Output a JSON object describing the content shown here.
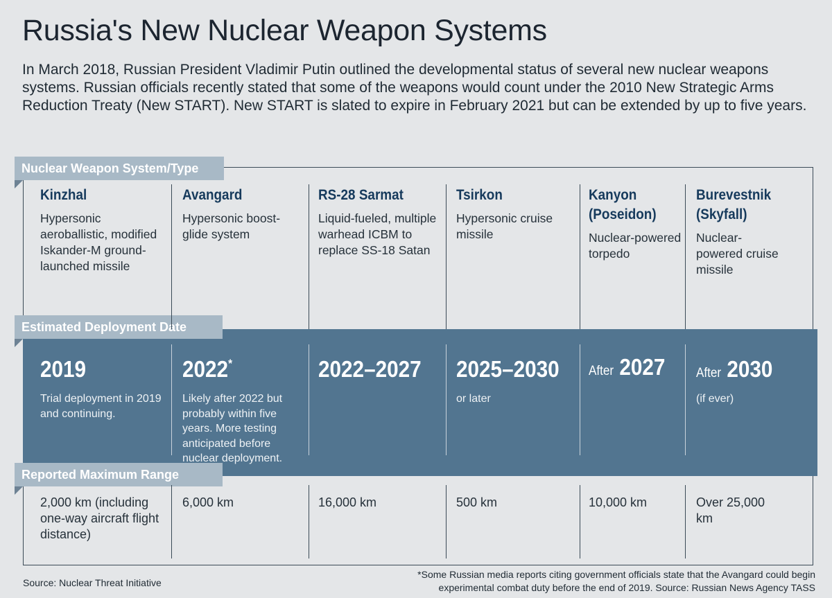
{
  "title": "Russia's New Nuclear Weapon Systems",
  "intro": "In March 2018, Russian President Vladimir Putin outlined the developmental status of several new nuclear weapons systems. Russian officials recently stated that some of the weapons would count under the 2010 New Strategic Arms Reduction Treaty (New START). New START is slated to expire in February 2021 but can be extended by up to five years.",
  "sections": {
    "system": "Nuclear Weapon System/Type",
    "deployment": "Estimated Deployment Date",
    "range": "Reported Maximum Range"
  },
  "weapons": [
    {
      "name": "Kinzhal",
      "desc": "Hypersonic aeroballistic, modified Iskander-M ground-launched missile",
      "date_prefix": "",
      "date": "2019",
      "date_mark": "",
      "date_note": "Trial deployment in 2019 and continuing.",
      "range": "2,000 km (including one-way aircraft flight distance)"
    },
    {
      "name": "Avangard",
      "desc": "Hypersonic boost-glide system",
      "date_prefix": "",
      "date": "2022",
      "date_mark": "*",
      "date_note": "Likely after 2022 but probably within five years. More testing anticipated  before nuclear deployment.",
      "range": "6,000 km"
    },
    {
      "name": "RS-28 Sarmat",
      "desc": "Liquid-fueled, multiple warhead ICBM to replace SS-18 Satan",
      "date_prefix": "",
      "date": "2022–2027",
      "date_mark": "",
      "date_note": "",
      "range": "16,000 km"
    },
    {
      "name": "Tsirkon",
      "desc": "Hypersonic cruise missile",
      "date_prefix": "",
      "date": "2025–2030",
      "date_mark": "",
      "date_note": "or later",
      "range": "500 km"
    },
    {
      "name": "Kanyon (Poseidon)",
      "desc": "Nuclear-powered torpedo",
      "date_prefix": "After",
      "date": "2027",
      "date_mark": "",
      "date_note": "",
      "range": "10,000 km"
    },
    {
      "name": "Burevestnik (Skyfall)",
      "desc": "Nuclear-powered cruise missile",
      "date_prefix": "After",
      "date": "2030",
      "date_mark": "",
      "date_note": "(if ever)",
      "range": "Over 25,000 km"
    }
  ],
  "source": "Source: Nuclear Threat Initiative",
  "footnote": "*Some Russian media reports citing government officials state that the Avangard could begin experimental combat duty before the end of 2019. Source: Russian News Agency TASS"
}
